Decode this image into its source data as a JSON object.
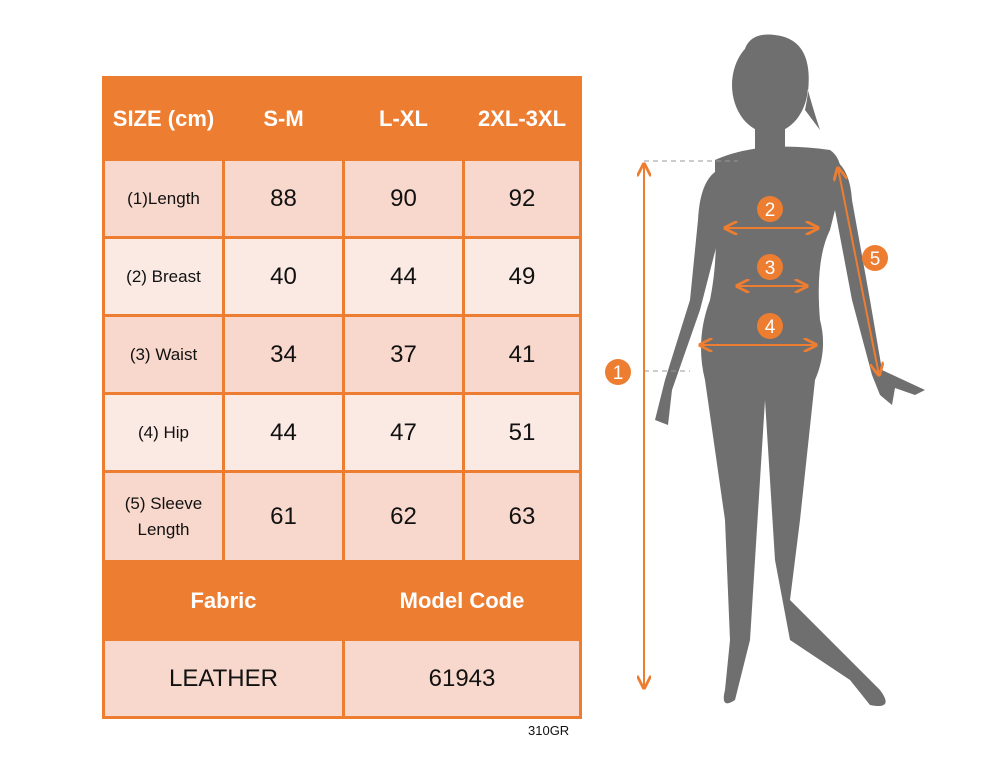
{
  "table": {
    "header": [
      "SIZE (cm)",
      "S-M",
      "L-XL",
      "2XL-3XL"
    ],
    "rows": [
      {
        "label": "(1)Length",
        "values": [
          "88",
          "90",
          "92"
        ]
      },
      {
        "label": "(2) Breast",
        "values": [
          "40",
          "44",
          "49"
        ]
      },
      {
        "label": "(3) Waist",
        "values": [
          "34",
          "37",
          "41"
        ]
      },
      {
        "label": "(4) Hip",
        "values": [
          "44",
          "47",
          "51"
        ]
      },
      {
        "label": "(5) Sleeve Length",
        "values": [
          "61",
          "62",
          "63"
        ]
      }
    ],
    "footer_headers": [
      "Fabric",
      "Model Code"
    ],
    "footer_values": [
      "LEATHER",
      "61943"
    ]
  },
  "product_code": "310GR",
  "figure": {
    "markers": [
      "1",
      "2",
      "3",
      "4",
      "5"
    ]
  },
  "colors": {
    "accent": "#ED7D31",
    "cell": "#F8D8CC",
    "cell_alt": "#FBEAE3",
    "silhouette": "#6F6F6F"
  }
}
